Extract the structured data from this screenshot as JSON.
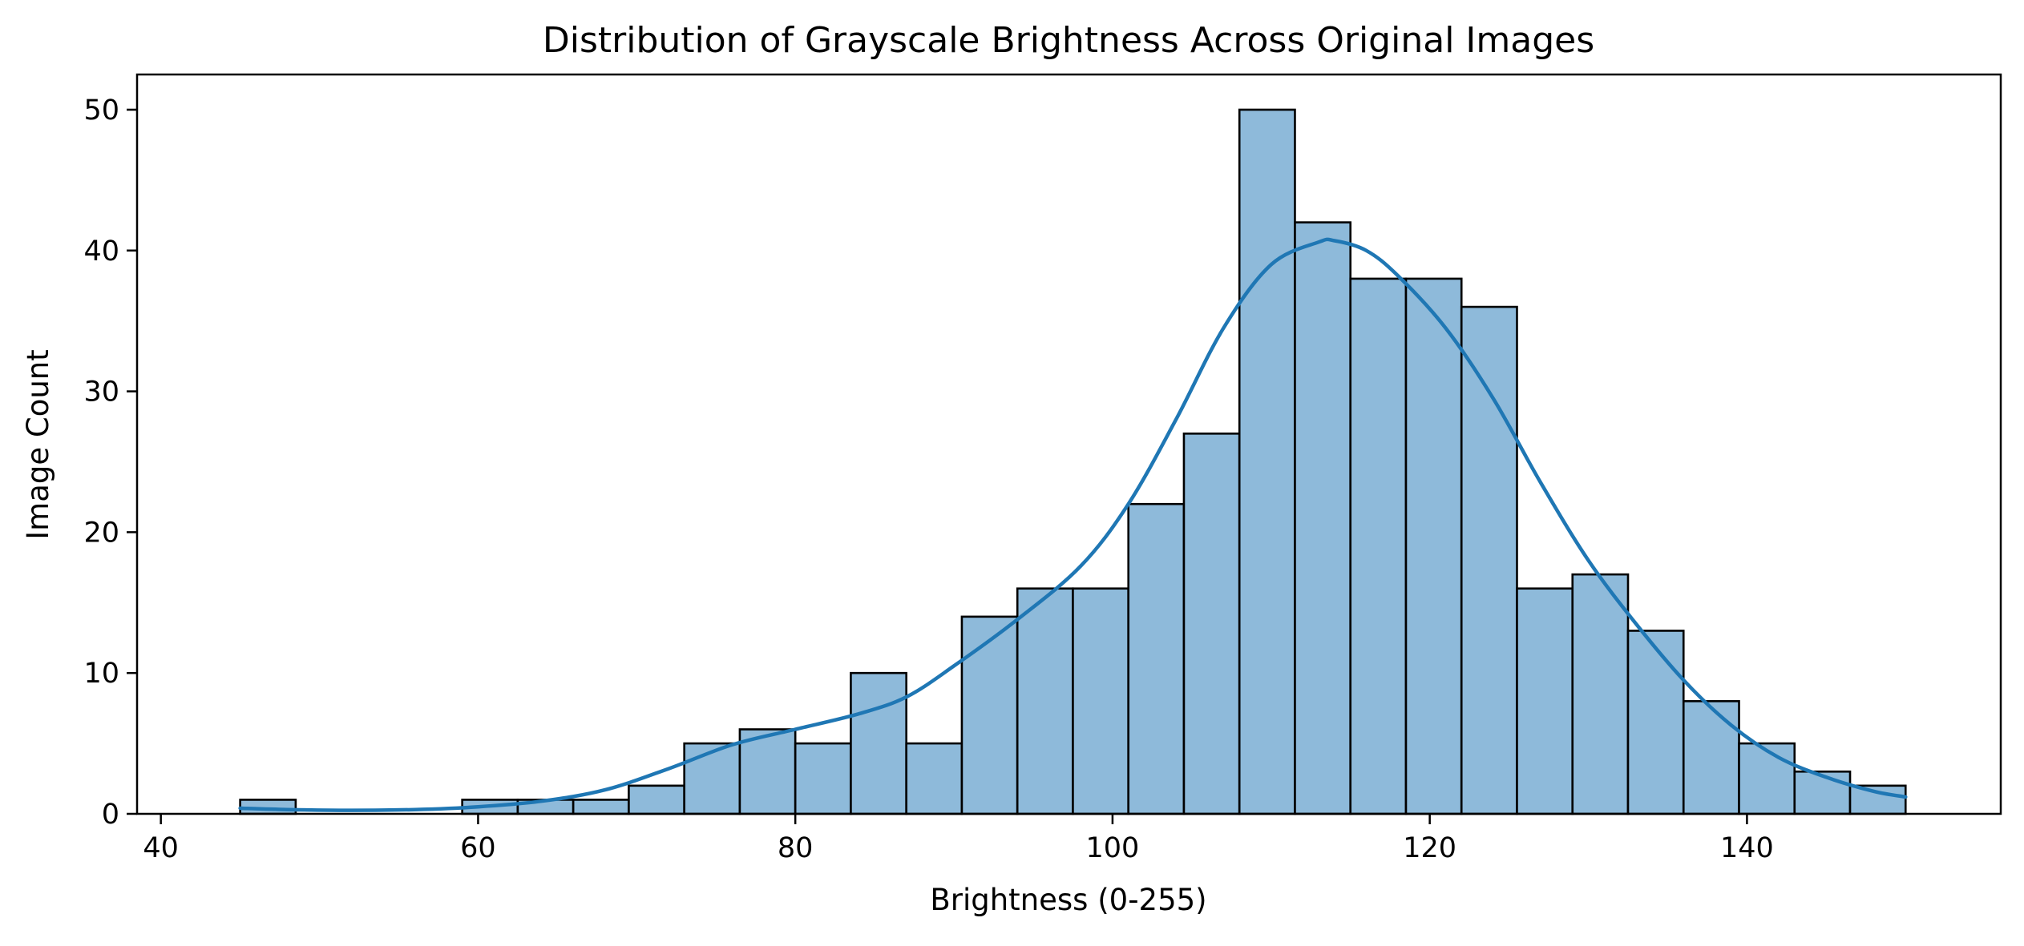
{
  "chart_data": {
    "type": "bar",
    "title": "Distribution of Grayscale Brightness Across Original Images",
    "xlabel": "Brightness (0-255)",
    "ylabel": "Image Count",
    "xlim": [
      38.5,
      156
    ],
    "ylim": [
      0,
      52.5
    ],
    "x_ticks": [
      40,
      60,
      80,
      100,
      120,
      140
    ],
    "x_tick_labels": [
      "40",
      "60",
      "80",
      "100",
      "120",
      "140"
    ],
    "y_ticks": [
      0,
      10,
      20,
      30,
      40,
      50
    ],
    "y_tick_labels": [
      "0",
      "10",
      "20",
      "30",
      "40",
      "50"
    ],
    "grid": false,
    "bin_start": 45,
    "bin_width": 3.5,
    "values": [
      1,
      0,
      0,
      0,
      1,
      1,
      1,
      2,
      5,
      6,
      5,
      10,
      5,
      14,
      16,
      16,
      22,
      27,
      50,
      42,
      38,
      38,
      36,
      16,
      17,
      13,
      8,
      5,
      3,
      2
    ],
    "kde": {
      "name": "",
      "x": [
        45,
        48,
        52,
        56,
        60,
        64,
        68,
        72,
        76,
        80,
        84,
        87,
        90,
        94,
        98,
        101,
        104,
        107,
        110,
        113,
        114,
        116,
        118,
        121,
        124,
        127,
        130,
        133,
        136,
        139,
        142,
        145,
        148,
        150
      ],
      "y": [
        0.4,
        0.3,
        0.25,
        0.3,
        0.5,
        0.9,
        1.7,
        3.2,
        4.9,
        6.0,
        7.1,
        8.3,
        10.5,
        13.8,
        17.6,
        22,
        28,
        34.5,
        39,
        40.6,
        40.7,
        40,
        38.2,
        34.5,
        29.5,
        23.5,
        18,
        13.5,
        9.5,
        6.3,
        4.0,
        2.6,
        1.6,
        1.2
      ]
    },
    "colors": {
      "bar_fill": "#8ebada",
      "bar_edge": "#000000",
      "kde_line": "#1f77b4"
    }
  }
}
